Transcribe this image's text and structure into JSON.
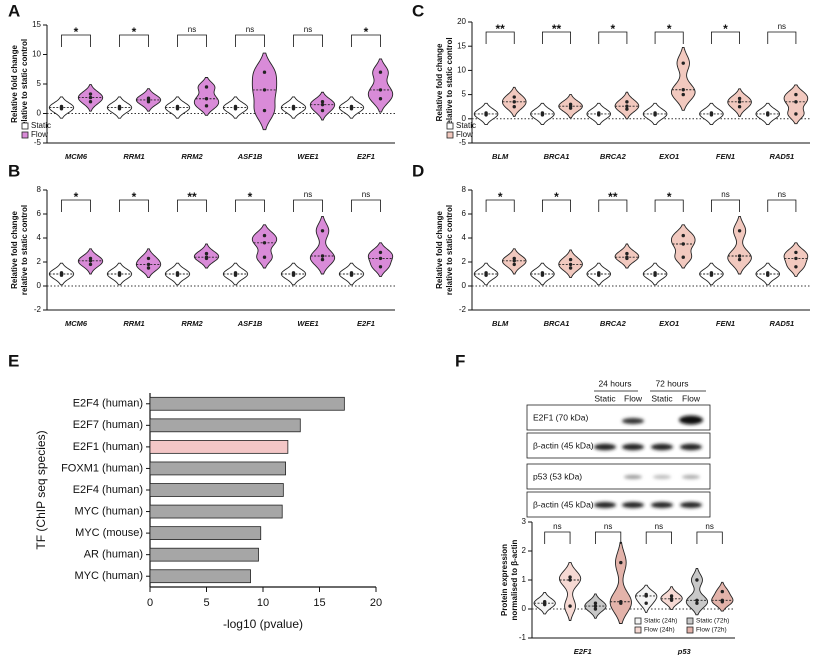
{
  "chart_data": [
    {
      "type": "violin",
      "panel_label": "A",
      "y_label": [
        "Relative fold change",
        "relative to static control"
      ],
      "ylim": [
        -5,
        15
      ],
      "yticks": [
        -5,
        0,
        5,
        10,
        15
      ],
      "categories": [
        "MCM6",
        "RRM1",
        "RRM2",
        "ASF1B",
        "WEE1",
        "E2F1"
      ],
      "significance": [
        "*",
        "*",
        "ns",
        "ns",
        "ns",
        "*"
      ],
      "legend": "lower left",
      "series": [
        {
          "name": "Static",
          "color": "#ffffff",
          "values": [
            [
              0.8,
              1,
              1.2
            ],
            [
              0.8,
              1,
              1.2
            ],
            [
              0.8,
              1,
              1.2
            ],
            [
              0.8,
              1,
              1.2
            ],
            [
              0.8,
              1,
              1.2
            ],
            [
              0.8,
              1,
              1.2
            ]
          ]
        },
        {
          "name": "Flow",
          "color": "#d98bd8",
          "values": [
            [
              2,
              2.7,
              3.3
            ],
            [
              2,
              2.3,
              2.6
            ],
            [
              1.3,
              2.5,
              4.5
            ],
            [
              0.5,
              4,
              7
            ],
            [
              0.5,
              1.5,
              2
            ],
            [
              2.5,
              4,
              7
            ]
          ]
        }
      ]
    },
    {
      "type": "violin",
      "panel_label": "B",
      "y_label": [
        "Relative fold change",
        "relative to static control"
      ],
      "ylim": [
        -2,
        8
      ],
      "yticks": [
        -2,
        0,
        2,
        4,
        6,
        8
      ],
      "categories": [
        "MCM6",
        "RRM1",
        "RRM2",
        "ASF1B",
        "WEE1",
        "E2F1"
      ],
      "significance": [
        "*",
        "*",
        "**",
        "*",
        "ns",
        "ns"
      ],
      "series": [
        {
          "name": "Static",
          "color": "#ffffff",
          "values": [
            [
              0.9,
              1,
              1.1
            ],
            [
              0.9,
              1,
              1.1
            ],
            [
              0.9,
              1,
              1.1
            ],
            [
              0.9,
              1,
              1.1
            ],
            [
              0.9,
              1,
              1.1
            ],
            [
              0.9,
              1,
              1.1
            ]
          ]
        },
        {
          "name": "Flow",
          "color": "#d98bd8",
          "values": [
            [
              1.8,
              2.1,
              2.3
            ],
            [
              1.5,
              1.8,
              2.3
            ],
            [
              2.3,
              2.4,
              2.7
            ],
            [
              2.4,
              3.6,
              4.2
            ],
            [
              2.2,
              2.5,
              4.6
            ],
            [
              1.6,
              2.3,
              2.8
            ]
          ]
        }
      ]
    },
    {
      "type": "violin",
      "panel_label": "C",
      "y_label": [
        "Relative fold change",
        "relative to static control"
      ],
      "ylim": [
        -5,
        20
      ],
      "yticks": [
        -5,
        0,
        5,
        10,
        15,
        20
      ],
      "categories": [
        "BLM",
        "BRCA1",
        "BRCA2",
        "EXO1",
        "FEN1",
        "RAD51"
      ],
      "significance": [
        "**",
        "**",
        "*",
        "*",
        "*",
        "ns"
      ],
      "legend": "lower left",
      "series": [
        {
          "name": "Static",
          "color": "#ffffff",
          "values": [
            [
              0.8,
              1,
              1.2
            ],
            [
              0.8,
              1,
              1.2
            ],
            [
              0.8,
              1,
              1.2
            ],
            [
              0.8,
              1,
              1.2
            ],
            [
              0.8,
              1,
              1.2
            ],
            [
              0.8,
              1,
              1.2
            ]
          ]
        },
        {
          "name": "Flow",
          "color": "#f2c9bf",
          "values": [
            [
              2.5,
              3.5,
              4.5
            ],
            [
              2.2,
              2.6,
              3
            ],
            [
              2,
              2.6,
              3.5
            ],
            [
              5,
              6,
              11.5
            ],
            [
              2.5,
              3.5,
              4.2
            ],
            [
              1,
              3.5,
              5
            ]
          ]
        }
      ]
    },
    {
      "type": "violin",
      "panel_label": "D",
      "y_label": [
        "Relative fold change",
        "relative to static control"
      ],
      "ylim": [
        -2,
        8
      ],
      "yticks": [
        -2,
        0,
        2,
        4,
        6,
        8
      ],
      "categories": [
        "BLM",
        "BRCA1",
        "BRCA2",
        "EXO1",
        "FEN1",
        "RAD51"
      ],
      "significance": [
        "*",
        "*",
        "**",
        "*",
        "ns",
        "ns"
      ],
      "series": [
        {
          "name": "Static",
          "color": "#ffffff",
          "values": [
            [
              0.9,
              1,
              1.1
            ],
            [
              0.9,
              1,
              1.1
            ],
            [
              0.9,
              1,
              1.1
            ],
            [
              0.9,
              1,
              1.1
            ],
            [
              0.9,
              1,
              1.1
            ],
            [
              0.9,
              1,
              1.1
            ]
          ]
        },
        {
          "name": "Flow",
          "color": "#f2c9bf",
          "values": [
            [
              1.8,
              2.1,
              2.3
            ],
            [
              1.5,
              1.8,
              2.2
            ],
            [
              2.3,
              2.4,
              2.7
            ],
            [
              2.4,
              3.5,
              4.2
            ],
            [
              2.2,
              2.5,
              4.6
            ],
            [
              1.6,
              2.3,
              2.8
            ]
          ]
        }
      ]
    },
    {
      "type": "bar",
      "orientation": "horizontal",
      "panel_label": "E",
      "x_label": "-log10 (pvalue)",
      "y_label": "TF (ChIP seq species)",
      "categories": [
        "E2F4 (human)",
        "E2F7 (human)",
        "E2F1 (human)",
        "FOXM1 (human)",
        "E2F4 (human)",
        "MYC (human)",
        "MYC (mouse)",
        "AR (human)",
        "MYC (human)"
      ],
      "values": [
        17.2,
        13.3,
        12.2,
        12.0,
        11.8,
        11.7,
        9.8,
        9.6,
        8.9
      ],
      "colors": [
        "#a6a6a6",
        "#a6a6a6",
        "#f3c6c6",
        "#a6a6a6",
        "#a6a6a6",
        "#a6a6a6",
        "#a6a6a6",
        "#a6a6a6",
        "#a6a6a6"
      ],
      "xlim": [
        0,
        20
      ],
      "xticks": [
        0,
        5,
        10,
        15,
        20
      ]
    },
    {
      "type": "violin",
      "panel_label": "F",
      "y_label": [
        "Protein expression",
        "normalised to β-actin"
      ],
      "ylim": [
        -1,
        3
      ],
      "yticks": [
        -1,
        0,
        1,
        2,
        3
      ],
      "categories": [
        "E2F1",
        "p53"
      ],
      "significance": [
        [
          "ns",
          "ns"
        ],
        [
          "ns",
          "ns"
        ]
      ],
      "legend": "lower right",
      "series": [
        {
          "name": "Static (24h)",
          "color": "#f4f4f4",
          "values": [
            [
              0.15,
              0.2,
              0.25
            ],
            [
              0.2,
              0.45,
              0.5
            ]
          ]
        },
        {
          "name": "Flow (24h)",
          "color": "#f6d9d3",
          "values": [
            [
              0.1,
              1.0,
              1.1
            ],
            [
              0.3,
              0.35,
              0.45
            ]
          ]
        },
        {
          "name": "Static (72h)",
          "color": "#c8c8c8",
          "values": [
            [
              0,
              0.1,
              0.2
            ],
            [
              0.2,
              0.3,
              1.0
            ]
          ]
        },
        {
          "name": "Flow (72h)",
          "color": "#e3b3aa",
          "values": [
            [
              0.2,
              0.25,
              1.6
            ],
            [
              0.25,
              0.3,
              0.6
            ]
          ]
        }
      ]
    }
  ],
  "blot": {
    "time_points": [
      "24 hours",
      "72 hours"
    ],
    "conditions": [
      "Static",
      "Flow",
      "Static",
      "Flow"
    ],
    "bands": [
      "E2F1 (70 kDa)",
      "β-actin (45 kDa)",
      "p53 (53 kDa)",
      "β-actin (45 kDa)"
    ]
  }
}
